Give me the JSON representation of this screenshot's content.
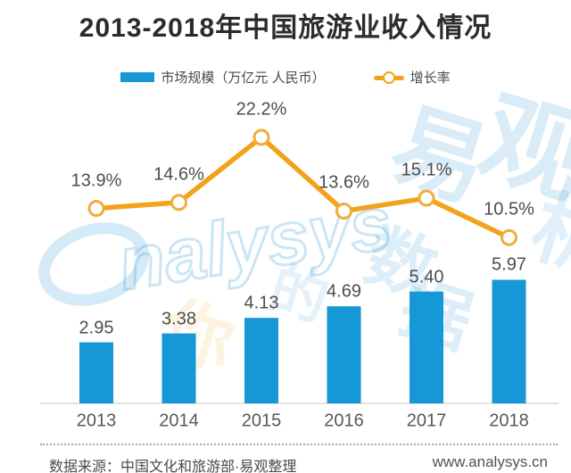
{
  "page": {
    "title": "2013-2018年中国旅游业收入情况"
  },
  "legend": {
    "items": [
      {
        "label": "市场规模（万亿元 人民币）",
        "swatch": "bar",
        "color": "#1798d6"
      },
      {
        "label": "增长率",
        "swatch": "line-circle",
        "color": "#f2a31b"
      }
    ]
  },
  "chart_data": {
    "type": "combo",
    "title": "2013-2018年中国旅游业收入情况",
    "categories": [
      "2013",
      "2014",
      "2015",
      "2016",
      "2017",
      "2018"
    ],
    "series": [
      {
        "name": "市场规模（万亿元 人民币）",
        "chart_type": "bar",
        "values": [
          2.95,
          3.38,
          4.13,
          4.69,
          5.4,
          5.97
        ],
        "labels": [
          "2.95",
          "3.38",
          "4.13",
          "4.69",
          "5.40",
          "5.97"
        ],
        "unit": "万亿元 人民币",
        "color": "#1798d6"
      },
      {
        "name": "增长率",
        "chart_type": "line",
        "values": [
          13.9,
          14.6,
          22.2,
          13.6,
          15.1,
          10.5
        ],
        "labels": [
          "13.9%",
          "14.6%",
          "22.2%",
          "13.6%",
          "15.1%",
          "10.5%"
        ],
        "unit": "%",
        "color": "#f2a31b",
        "marker": "open-circle"
      }
    ],
    "xlabel": "",
    "ylabel": "",
    "grid": false,
    "value_labels_shown": true,
    "legend_position": "top"
  },
  "footer": {
    "source": "数据来源：中国文化和旅游部·易观整理",
    "website": "www.analysys.cn"
  },
  "watermark": {
    "script": "nalysys",
    "char_yi": "易",
    "char_guan": "观",
    "char_shu": "数",
    "char_ju": "据",
    "char_xi": "析",
    "char_ni": "你",
    "char_de": "的"
  },
  "colors": {
    "bar": "#1798d6",
    "line": "#f2a31b",
    "title_text": "#2b2b2b",
    "label_text": "#4d4d4d",
    "baseline": "#e3e3e3",
    "watermark_blue": "#2e96d5",
    "watermark_orange": "#f2a31b"
  }
}
